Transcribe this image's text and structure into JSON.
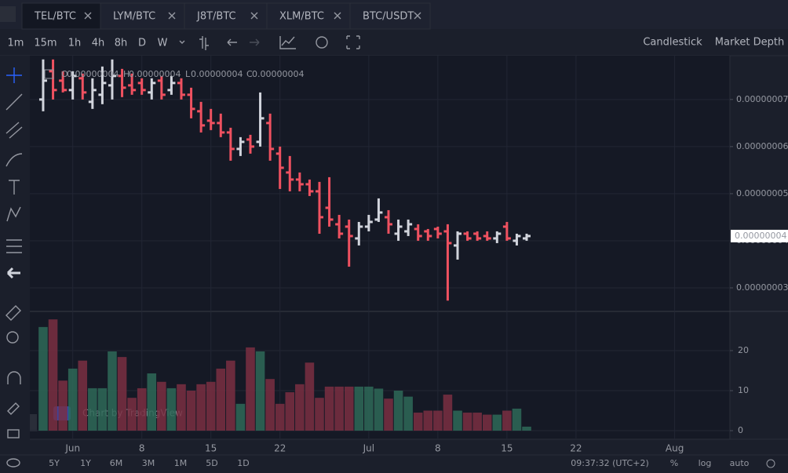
{
  "tabs": [
    "TEL/BTC",
    "LYM/BTC",
    "J8T/BTC",
    "XLM/BTC",
    "BTC/USDT"
  ],
  "active_tab": 0,
  "intervals": [
    "1m",
    "15m",
    "1h",
    "4h",
    "8h",
    "D",
    "W"
  ],
  "active_interval": 5,
  "chart_types": [
    "Candlestick",
    "Market Depth"
  ],
  "active_chart_type": 0,
  "legend": [
    {
      "key": "O",
      "value": "0.00000004"
    },
    {
      "key": "H",
      "value": "0.00000004"
    },
    {
      "key": "L",
      "value": "0.00000004"
    },
    {
      "key": "C",
      "value": "0.00000004"
    }
  ],
  "watermark": "Chart by TradingView",
  "ranges": [
    "5Y",
    "1Y",
    "6M",
    "3M",
    "1M",
    "5D",
    "1D"
  ],
  "clock": "09:37:32 (UTC+2)",
  "scale_options": [
    "%",
    "log",
    "auto"
  ],
  "chart_data": {
    "type": "ohlc",
    "up_color": "#d1d4dc",
    "down_color": "#ef5160",
    "up_volume_color": "#2e6a58",
    "down_volume_color": "#7a2f42",
    "grid": true,
    "last_price_label": "0.00000004",
    "xlim": [
      -1.35,
      69.6
    ],
    "xticks": [
      {
        "value": 3,
        "label": "Jun"
      },
      {
        "value": 10,
        "label": "8"
      },
      {
        "value": 17,
        "label": "15"
      },
      {
        "value": 24,
        "label": "22"
      },
      {
        "value": 33,
        "label": "Jul"
      },
      {
        "value": 40,
        "label": "8"
      },
      {
        "value": 47,
        "label": "15"
      },
      {
        "value": 54,
        "label": "22"
      },
      {
        "value": 64,
        "label": "Aug"
      }
    ],
    "ylim": [
      2.5e-08,
      7.93e-08
    ],
    "yticks": [
      {
        "value": 3e-08,
        "label": "0.00000003"
      },
      {
        "value": 4e-08,
        "label": "0.00000004"
      },
      {
        "value": 5e-08,
        "label": "0.00000005"
      },
      {
        "value": 6e-08,
        "label": "0.00000006"
      },
      {
        "value": 7e-08,
        "label": "0.00000007"
      }
    ],
    "open": [
      7e-08,
      7.6e-08,
      7.4e-08,
      7.2e-08,
      7.45e-08,
      6.95e-08,
      7.1e-08,
      7.3e-08,
      7.5e-08,
      7.3e-08,
      7.35e-08,
      7.15e-08,
      7.4e-08,
      7.2e-08,
      7.35e-08,
      7.1e-08,
      6.75e-08,
      6.55e-08,
      6.5e-08,
      6.3e-08,
      5.95e-08,
      6.15e-08,
      6.1e-08,
      6.5e-08,
      5.85e-08,
      5.45e-08,
      5.3e-08,
      5.2e-08,
      5.05e-08,
      4.7e-08,
      4.35e-08,
      4.3e-08,
      4.05e-08,
      4.3e-08,
      4.45e-08,
      4.5e-08,
      4.15e-08,
      4.2e-08,
      4.25e-08,
      4.2e-08,
      4.25e-08,
      4.2e-08,
      3.9e-08,
      4.15e-08,
      4.15e-08,
      4.1e-08,
      4.05e-08,
      4.3e-08,
      4e-08,
      4.05e-08
    ],
    "high": [
      7.85e-08,
      7.85e-08,
      7.6e-08,
      7.6e-08,
      7.55e-08,
      7.45e-08,
      7.7e-08,
      7.85e-08,
      7.65e-08,
      7.55e-08,
      7.45e-08,
      7.45e-08,
      7.5e-08,
      7.5e-08,
      7.45e-08,
      7.25e-08,
      6.95e-08,
      6.8e-08,
      6.7e-08,
      6.4e-08,
      6.2e-08,
      6.25e-08,
      7.15e-08,
      6.7e-08,
      6e-08,
      5.8e-08,
      5.45e-08,
      5.3e-08,
      5.25e-08,
      5.35e-08,
      4.55e-08,
      4.45e-08,
      4.4e-08,
      4.55e-08,
      4.9e-08,
      4.65e-08,
      4.45e-08,
      4.45e-08,
      4.35e-08,
      4.25e-08,
      4.3e-08,
      4.35e-08,
      4.2e-08,
      4.2e-08,
      4.2e-08,
      4.2e-08,
      4.2e-08,
      4.4e-08,
      4.15e-08,
      4.15e-08
    ],
    "low": [
      6.75e-08,
      7e-08,
      7.15e-08,
      7e-08,
      7e-08,
      6.8e-08,
      6.9e-08,
      7e-08,
      7.05e-08,
      7.1e-08,
      7.1e-08,
      7e-08,
      7e-08,
      7.1e-08,
      7e-08,
      6.6e-08,
      6.3e-08,
      6.35e-08,
      6.2e-08,
      5.7e-08,
      5.8e-08,
      5.85e-08,
      6e-08,
      5.7e-08,
      5.1e-08,
      5.05e-08,
      5.05e-08,
      4.95e-08,
      4.15e-08,
      4.3e-08,
      4.05e-08,
      3.45e-08,
      3.9e-08,
      4.2e-08,
      4.4e-08,
      4.15e-08,
      4e-08,
      4.1e-08,
      4e-08,
      4e-08,
      4.05e-08,
      2.73e-08,
      3.6e-08,
      4e-08,
      4e-08,
      4e-08,
      3.95e-08,
      4e-08,
      3.9e-08,
      4e-08
    ],
    "close": [
      7.4e-08,
      7.2e-08,
      7.2e-08,
      7.5e-08,
      7.15e-08,
      7.2e-08,
      7.35e-08,
      7.5e-08,
      7.25e-08,
      7.2e-08,
      7.2e-08,
      7.35e-08,
      7.1e-08,
      7.35e-08,
      7.1e-08,
      6.8e-08,
      6.45e-08,
      6.5e-08,
      6.3e-08,
      5.95e-08,
      6.1e-08,
      6e-08,
      6.6e-08,
      5.95e-08,
      5.55e-08,
      5.3e-08,
      5.2e-08,
      5.05e-08,
      4.5e-08,
      4.45e-08,
      4.15e-08,
      4.1e-08,
      4.3e-08,
      4.4e-08,
      4.6e-08,
      4.35e-08,
      4.3e-08,
      4.35e-08,
      4.1e-08,
      4.1e-08,
      4.15e-08,
      3.95e-08,
      4.15e-08,
      4.05e-08,
      4.05e-08,
      4.05e-08,
      4.15e-08,
      4.05e-08,
      4.1e-08,
      4.1e-08
    ],
    "volume": {
      "ylim": [
        0,
        29.6
      ],
      "yticks": [
        0,
        10,
        20
      ],
      "values": [
        25.9,
        27.8,
        12.5,
        15.5,
        17.5,
        10.6,
        10.6,
        19.8,
        18.4,
        8.2,
        10.6,
        14.3,
        12.2,
        10.6,
        11.6,
        10,
        11.6,
        12.2,
        15.5,
        17.5,
        6.7,
        20.8,
        19.8,
        12.9,
        6.7,
        9.6,
        11.6,
        17,
        8.2,
        11,
        11,
        11,
        11,
        11,
        10.5,
        8,
        10,
        8.5,
        4.5,
        5,
        5,
        9,
        5,
        4.5,
        4.5,
        4,
        4,
        5,
        5.5,
        1
      ]
    }
  }
}
